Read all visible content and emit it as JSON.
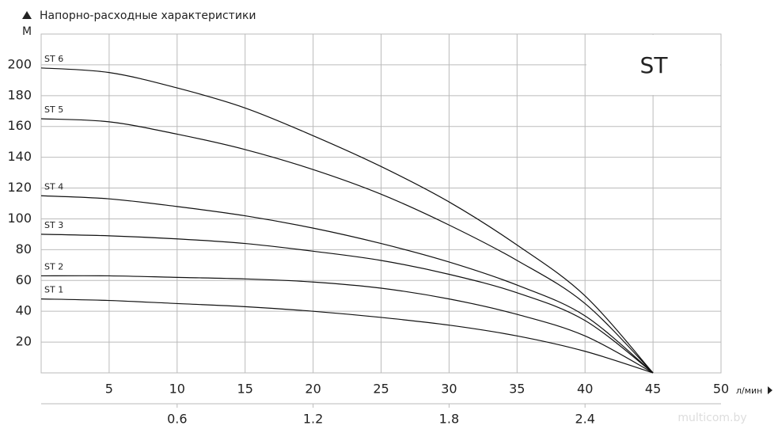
{
  "chart_data": {
    "type": "line",
    "title": "Напорно-расходные характеристики",
    "y_label": "М",
    "x_label": "л/мин",
    "annotation": "ST",
    "watermark": "multicom.by",
    "x": [
      0,
      5,
      10,
      15,
      20,
      25,
      30,
      35,
      40,
      45
    ],
    "series": [
      {
        "name": "ST 1",
        "color": "#111111",
        "values": [
          48,
          47,
          45,
          43,
          40,
          36,
          31,
          24,
          14,
          0
        ]
      },
      {
        "name": "ST 2",
        "color": "#111111",
        "values": [
          63,
          63,
          62,
          61,
          59,
          55,
          48,
          38,
          24,
          0
        ]
      },
      {
        "name": "ST 3",
        "color": "#111111",
        "values": [
          90,
          89,
          87,
          84,
          79,
          73,
          64,
          52,
          34,
          0
        ]
      },
      {
        "name": "ST 4",
        "color": "#111111",
        "values": [
          115,
          113,
          108,
          102,
          94,
          84,
          72,
          57,
          37,
          0
        ]
      },
      {
        "name": "ST 5",
        "color": "#111111",
        "values": [
          165,
          163,
          155,
          145,
          132,
          116,
          96,
          73,
          45,
          0
        ]
      },
      {
        "name": "ST 6",
        "color": "#111111",
        "values": [
          198,
          195,
          185,
          172,
          154,
          134,
          111,
          83,
          50,
          0
        ]
      }
    ],
    "xlim": [
      0,
      50
    ],
    "xticks": [
      5,
      10,
      15,
      20,
      25,
      30,
      35,
      40,
      45,
      50
    ],
    "x2lim": [
      0,
      3
    ],
    "x2ticks": [
      0.6,
      1.2,
      1.8,
      2.4
    ],
    "ylim": [
      0,
      220
    ],
    "yticks": [
      20,
      40,
      60,
      80,
      100,
      120,
      140,
      160,
      180,
      200
    ],
    "grid": true,
    "grid_color": "#bbbbbb"
  }
}
